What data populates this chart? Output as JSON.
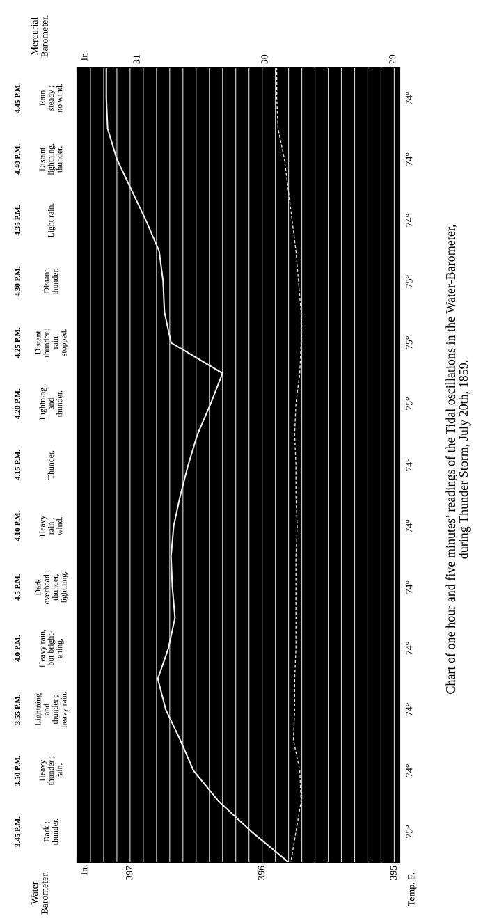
{
  "chart_data": {
    "type": "line",
    "orientation": "horizontal",
    "title": "Chart of one hour and five minutes’ readings of the Tidal oscillations in the Water-Barometer,\nduring Thunder Storm, July 20th, 1859.",
    "x2label": "Mercurial\nBarometer.",
    "annotations": [
      "In.",
      "In.",
      "Temp. F.",
      "Water\nBarometer.",
      "Rain\nsteady ;\nno wind.",
      "Distant\nlightning,\nthunder.",
      "Light rain.",
      "Distant\nthunder.",
      "D’stant\nthunder ;\nrain\nstopped.",
      "Lightning\nand\nthunder.",
      "Thunder.",
      "Heavy\nrain ;\nwind.",
      "Dark\noverhead ;\nthunder,\nlightning.",
      "Heavy rain,\nbut bright-\nening.",
      "Lightning\nand\nthunder ;\nheavy rain.",
      "Heavy\nthunder ;\nrain.",
      "Dark ;\nthunder.",
      "74°",
      "74°",
      "74°",
      "75°",
      "75°",
      "75°",
      "74°",
      "74°",
      "74°",
      "74°",
      "74°",
      "74°",
      "75°"
    ],
    "categories": [
      null,
      "4.45 P.M.",
      null,
      "4.40 P.M.",
      null,
      "4.35 P.M.",
      null,
      "4.30 P.M.",
      null,
      "4.25 P.M.",
      null,
      "4.20 P.M.",
      null,
      "4.15 P.M.",
      null,
      "4.10 P.M.",
      null,
      "4.5 P.M.",
      null,
      "4.0 P.M.",
      null,
      "3.55 P.M.",
      null,
      "3.50 P.M.",
      null,
      "3.45 P.M.",
      null
    ],
    "xlim": [
      397.4,
      394.96
    ],
    "xticks": [
      {
        "value": 397.3,
        "label": null
      },
      {
        "value": 397.2,
        "label": null
      },
      {
        "value": 397.1,
        "label": null
      },
      397,
      {
        "value": 396.9,
        "label": null
      },
      {
        "value": 396.8,
        "label": null
      },
      {
        "value": 396.7,
        "label": null
      },
      {
        "value": 396.6,
        "label": null
      },
      {
        "value": 396.5,
        "label": null
      },
      {
        "value": 396.4,
        "label": null
      },
      {
        "value": 396.3,
        "label": null
      },
      {
        "value": 396.2,
        "label": null
      },
      {
        "value": 396.1,
        "label": null
      },
      396,
      {
        "value": 395.9,
        "label": null
      },
      {
        "value": 395.8,
        "label": null
      },
      {
        "value": 395.7,
        "label": null
      },
      {
        "value": 395.6,
        "label": null
      },
      {
        "value": 395.5,
        "label": null
      },
      {
        "value": 395.4,
        "label": null
      },
      {
        "value": 395.3,
        "label": null
      },
      {
        "value": 395.2,
        "label": null
      },
      {
        "value": 395.1,
        "label": null
      },
      395
    ],
    "x2lim": [
      31.47,
      28.95
    ],
    "x2ticks": [
      31,
      30,
      29
    ],
    "grid": true,
    "legend": false,
    "series": [
      {
        "color": "#f0f0f0",
        "line_style": "solid",
        "values": [
          397.18,
          397.18,
          397.17,
          397.1,
          396.99,
          396.88,
          396.78,
          396.75,
          396.74,
          396.69,
          396.3,
          396.39,
          396.49,
          396.56,
          396.62,
          396.67,
          396.69,
          396.68,
          396.66,
          396.71,
          396.79,
          396.73,
          396.62,
          396.52,
          396.33,
          396.08,
          395.8
        ]
      },
      {
        "color": "#e0e0e0",
        "line_style": "dashed",
        "axis": "x2",
        "values": [
          29.91,
          29.91,
          29.9,
          29.85,
          29.82,
          29.79,
          29.76,
          29.74,
          29.72,
          29.72,
          29.73,
          29.76,
          29.77,
          29.76,
          29.76,
          29.75,
          29.76,
          29.76,
          29.76,
          29.76,
          29.77,
          29.77,
          29.78,
          29.73,
          29.72,
          29.76,
          29.8
        ]
      }
    ]
  }
}
